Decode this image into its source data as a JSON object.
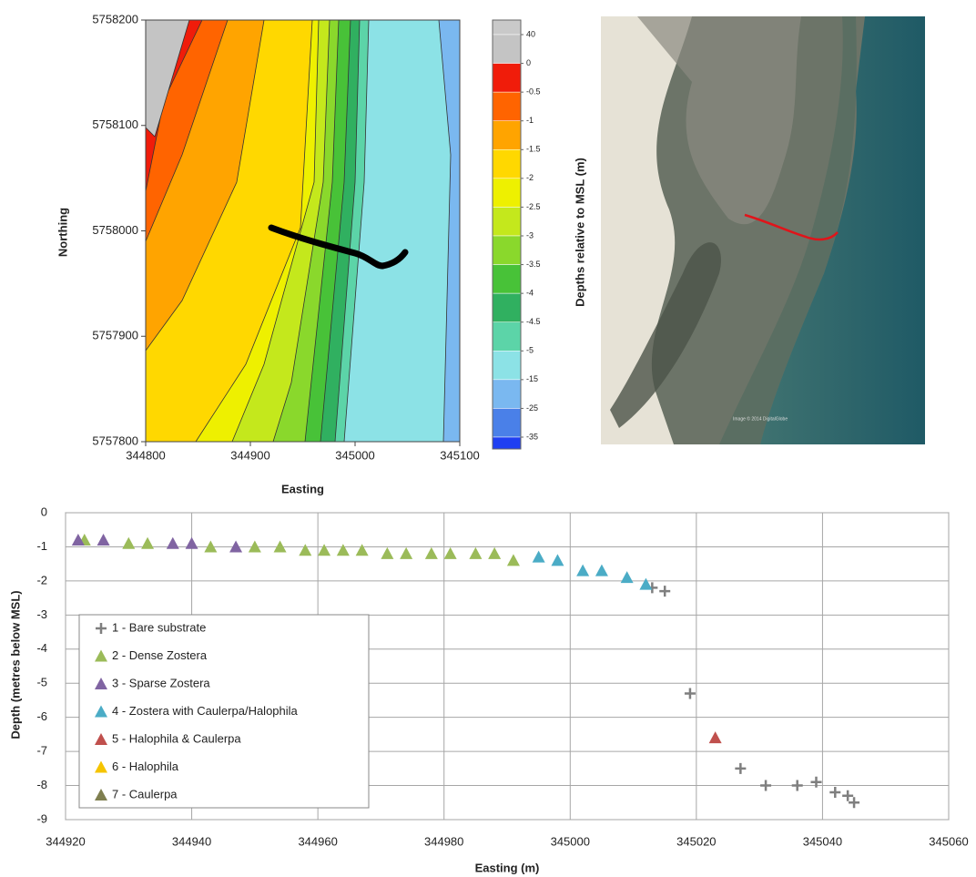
{
  "chart_data": [
    {
      "type": "contour",
      "xlabel": "Easting",
      "ylabel": "Northing",
      "xlim": [
        344800,
        345100
      ],
      "ylim": [
        5757800,
        5758200
      ],
      "xticks": [
        344800,
        344900,
        345000,
        345100
      ],
      "yticks": [
        5757800,
        5757900,
        5758000,
        5758100,
        5758200
      ],
      "colorbar": {
        "label": "Depths relative to MSL (m)",
        "levels": [
          40,
          0,
          -0.5,
          -1,
          -1.5,
          -2,
          -2.5,
          -3,
          -3.5,
          -4,
          -4.5,
          -5,
          -15,
          -25,
          -35
        ],
        "colors": [
          "#c9c9c9",
          "#c4c4c4",
          "#f01c0a",
          "#ff6400",
          "#ffa400",
          "#ffd800",
          "#eef000",
          "#c4e81c",
          "#8ad82c",
          "#48c238",
          "#30b060",
          "#5cd4a8",
          "#8ce2e6",
          "#7ab8f0",
          "#4a80e8",
          "#1f3ff2"
        ]
      }
    },
    {
      "type": "scatter",
      "xlabel": "Easting (m)",
      "ylabel": "Depth (metres below MSL)",
      "xlim": [
        344920,
        345060
      ],
      "ylim": [
        -9,
        0
      ],
      "xticks": [
        344920,
        344940,
        344960,
        344980,
        345000,
        345020,
        345040,
        345060
      ],
      "yticks": [
        0,
        -1,
        -2,
        -3,
        -4,
        -5,
        -6,
        -7,
        -8,
        -9
      ],
      "grid": true,
      "legend": "lower left",
      "series": [
        {
          "name": "1 - Bare substrate",
          "color": "#7f7f7f",
          "marker": "plus",
          "x": [
            345013,
            345015,
            345019,
            345027,
            345031,
            345036,
            345039,
            345042,
            345044,
            345045
          ],
          "values": [
            -2.2,
            -2.3,
            -5.3,
            -7.5,
            -8.0,
            -8.0,
            -7.9,
            -8.2,
            -8.3,
            -8.5
          ]
        },
        {
          "name": "2 - Dense Zostera",
          "color": "#9bbb59",
          "marker": "triangle",
          "x": [
            344923,
            344930,
            344933,
            344943,
            344950,
            344954,
            344958,
            344961,
            344964,
            344967,
            344971,
            344974,
            344978,
            344981,
            344985,
            344988,
            344991
          ],
          "values": [
            -0.8,
            -0.9,
            -0.9,
            -1.0,
            -1.0,
            -1.0,
            -1.1,
            -1.1,
            -1.1,
            -1.1,
            -1.2,
            -1.2,
            -1.2,
            -1.2,
            -1.2,
            -1.2,
            -1.4
          ]
        },
        {
          "name": "3 - Sparse Zostera",
          "color": "#8064a2",
          "marker": "triangle",
          "x": [
            344922,
            344926,
            344937,
            344940,
            344947
          ],
          "values": [
            -0.8,
            -0.8,
            -0.9,
            -0.9,
            -1.0
          ]
        },
        {
          "name": "4 - Zostera with Caulerpa/Halophila",
          "color": "#4bacc6",
          "marker": "triangle",
          "x": [
            344995,
            344998,
            345002,
            345005,
            345009,
            345012
          ],
          "values": [
            -1.3,
            -1.4,
            -1.7,
            -1.7,
            -1.9,
            -2.1
          ]
        },
        {
          "name": "5 - Halophila & Caulerpa",
          "color": "#c0504d",
          "marker": "triangle",
          "x": [
            345023
          ],
          "values": [
            -6.6
          ]
        },
        {
          "name": "6 - Halophila",
          "color": "#f5c400",
          "marker": "triangle",
          "x": [],
          "values": []
        },
        {
          "name": "7 - Caulerpa",
          "color": "#7f7f4f",
          "marker": "triangle",
          "x": [],
          "values": []
        }
      ]
    }
  ],
  "satellite": {
    "credit": "Image © 2014 DigitalGlobe"
  }
}
